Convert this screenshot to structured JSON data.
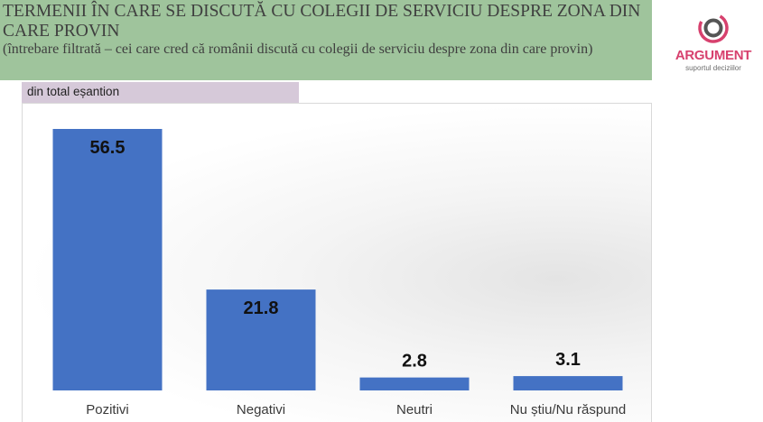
{
  "header": {
    "title": "TERMENII ÎN CARE SE DISCUTĂ CU COLEGII DE SERVICIU DESPRE ZONA DIN CARE PROVIN",
    "subtitle": "(întrebare filtrată – cei care cred că românii discută cu colegii de serviciu despre zona din care provin)"
  },
  "filter": {
    "label": "din total eșantion"
  },
  "logo": {
    "brand": "ARGUMENT",
    "tagline": "suportul deciziilor",
    "color": "#d7416e"
  },
  "chart_data": {
    "type": "bar",
    "categories": [
      "Pozitivi",
      "Negativi",
      "Neutri",
      "Nu știu/Nu răspund"
    ],
    "values": [
      56.5,
      21.8,
      2.8,
      3.1
    ],
    "title": "",
    "xlabel": "",
    "ylabel": "",
    "ylim": [
      0,
      56.5
    ],
    "bar_color": "#4472c4",
    "grid": false,
    "show_values": true
  }
}
